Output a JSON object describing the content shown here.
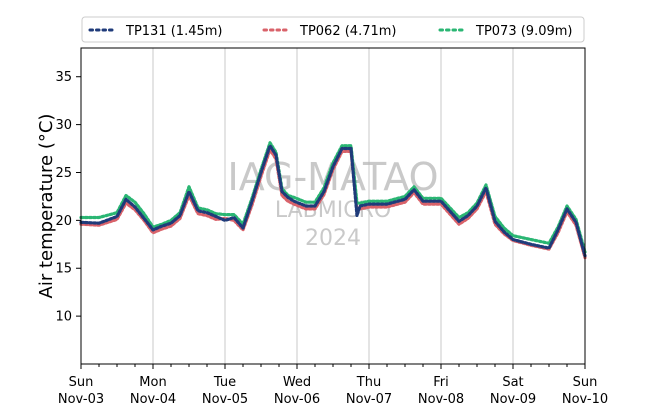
{
  "chart_data": {
    "type": "line",
    "ylabel": "Air temperature (°C)",
    "ylim": [
      5,
      38
    ],
    "yticks": [
      10,
      15,
      20,
      25,
      30,
      35
    ],
    "xlim": [
      "2024-11-03",
      "2024-11-10"
    ],
    "xticks": [
      {
        "day": "Sun",
        "date": "Nov-03"
      },
      {
        "day": "Mon",
        "date": "Nov-04"
      },
      {
        "day": "Tue",
        "date": "Nov-05"
      },
      {
        "day": "Wed",
        "date": "Nov-06"
      },
      {
        "day": "Thu",
        "date": "Nov-07"
      },
      {
        "day": "Fri",
        "date": "Nov-08"
      },
      {
        "day": "Sat",
        "date": "Nov-09"
      },
      {
        "day": "Sun",
        "date": "Nov-10"
      }
    ],
    "grid": "vertical",
    "legend_position": "top",
    "watermark": [
      "IAG-MATAO",
      "LABMICRO",
      "2024"
    ],
    "series": [
      {
        "name": "TP131 (1.45m)",
        "color": "#1f3b7a",
        "x": [
          "2024-11-03 00:00",
          "2024-11-03 06:00",
          "2024-11-03 12:00",
          "2024-11-03 15:00",
          "2024-11-03 18:00",
          "2024-11-03 21:00",
          "2024-11-04 00:00",
          "2024-11-04 03:00",
          "2024-11-04 06:00",
          "2024-11-04 09:00",
          "2024-11-04 12:00",
          "2024-11-04 15:00",
          "2024-11-04 18:00",
          "2024-11-04 21:00",
          "2024-11-05 00:00",
          "2024-11-05 03:00",
          "2024-11-05 06:00",
          "2024-11-05 09:00",
          "2024-11-05 12:00",
          "2024-11-05 15:00",
          "2024-11-05 17:00",
          "2024-11-05 19:00",
          "2024-11-05 21:00",
          "2024-11-05 23:00",
          "2024-11-06 03:00",
          "2024-11-06 06:00",
          "2024-11-06 09:00",
          "2024-11-06 12:00",
          "2024-11-06 15:00",
          "2024-11-06 18:00",
          "2024-11-06 20:00",
          "2024-11-06 21:00",
          "2024-11-07 00:00",
          "2024-11-07 06:00",
          "2024-11-07 12:00",
          "2024-11-07 15:00",
          "2024-11-07 18:00",
          "2024-11-08 00:00",
          "2024-11-08 06:00",
          "2024-11-08 09:00",
          "2024-11-08 12:00",
          "2024-11-08 15:00",
          "2024-11-08 18:00",
          "2024-11-08 21:00",
          "2024-11-09 00:00",
          "2024-11-09 06:00",
          "2024-11-09 12:00",
          "2024-11-09 15:00",
          "2024-11-09 18:00",
          "2024-11-09 21:00",
          "2024-11-10 00:00"
        ],
        "values": [
          19.8,
          19.7,
          20.4,
          22.2,
          21.4,
          20.2,
          19.0,
          19.4,
          19.7,
          20.5,
          23.0,
          21.0,
          20.8,
          20.4,
          20.0,
          20.3,
          19.2,
          22.0,
          25.0,
          27.8,
          26.8,
          23.0,
          22.4,
          22.0,
          21.5,
          21.5,
          23.0,
          25.6,
          27.5,
          27.5,
          20.5,
          21.5,
          21.7,
          21.7,
          22.2,
          23.2,
          22.0,
          22.0,
          19.9,
          20.5,
          21.5,
          23.4,
          19.9,
          18.8,
          18.0,
          17.5,
          17.1,
          19.0,
          21.2,
          19.8,
          16.3
        ]
      },
      {
        "name": "TP062 (4.71m)",
        "color": "#d9626a",
        "x": [
          "2024-11-03 00:00",
          "2024-11-03 06:00",
          "2024-11-03 12:00",
          "2024-11-03 15:00",
          "2024-11-03 18:00",
          "2024-11-03 21:00",
          "2024-11-04 00:00",
          "2024-11-04 03:00",
          "2024-11-04 06:00",
          "2024-11-04 09:00",
          "2024-11-04 12:00",
          "2024-11-04 15:00",
          "2024-11-04 18:00",
          "2024-11-04 21:00",
          "2024-11-05 00:00",
          "2024-11-05 03:00",
          "2024-11-05 06:00",
          "2024-11-05 09:00",
          "2024-11-05 12:00",
          "2024-11-05 15:00",
          "2024-11-05 17:00",
          "2024-11-05 19:00",
          "2024-11-05 21:00",
          "2024-11-05 23:00",
          "2024-11-06 03:00",
          "2024-11-06 06:00",
          "2024-11-06 09:00",
          "2024-11-06 12:00",
          "2024-11-06 15:00",
          "2024-11-06 18:00",
          "2024-11-06 20:00",
          "2024-11-06 21:00",
          "2024-11-07 00:00",
          "2024-11-07 06:00",
          "2024-11-07 12:00",
          "2024-11-07 15:00",
          "2024-11-07 18:00",
          "2024-11-08 00:00",
          "2024-11-08 06:00",
          "2024-11-08 09:00",
          "2024-11-08 12:00",
          "2024-11-08 15:00",
          "2024-11-08 18:00",
          "2024-11-08 21:00",
          "2024-11-09 00:00",
          "2024-11-09 06:00",
          "2024-11-09 12:00",
          "2024-11-09 15:00",
          "2024-11-09 18:00",
          "2024-11-09 21:00",
          "2024-11-10 00:00"
        ],
        "values": [
          19.6,
          19.5,
          20.1,
          21.8,
          21.1,
          20.0,
          18.7,
          19.1,
          19.4,
          20.2,
          22.6,
          20.7,
          20.5,
          20.1,
          20.2,
          20.0,
          19.0,
          21.6,
          24.6,
          27.4,
          26.4,
          22.6,
          22.0,
          21.7,
          21.2,
          21.2,
          22.7,
          25.3,
          27.2,
          27.2,
          21.2,
          21.2,
          21.4,
          21.4,
          21.9,
          22.9,
          21.7,
          21.7,
          19.6,
          20.2,
          21.2,
          23.0,
          19.6,
          18.6,
          17.9,
          17.4,
          17.0,
          18.7,
          20.9,
          19.5,
          16.1
        ]
      },
      {
        "name": "TP073 (9.09m)",
        "color": "#2ab673",
        "x": [
          "2024-11-03 00:00",
          "2024-11-03 06:00",
          "2024-11-03 12:00",
          "2024-11-03 15:00",
          "2024-11-03 18:00",
          "2024-11-03 21:00",
          "2024-11-04 00:00",
          "2024-11-04 03:00",
          "2024-11-04 06:00",
          "2024-11-04 09:00",
          "2024-11-04 12:00",
          "2024-11-04 15:00",
          "2024-11-04 18:00",
          "2024-11-04 21:00",
          "2024-11-05 00:00",
          "2024-11-05 03:00",
          "2024-11-05 06:00",
          "2024-11-05 09:00",
          "2024-11-05 12:00",
          "2024-11-05 15:00",
          "2024-11-05 17:00",
          "2024-11-05 19:00",
          "2024-11-05 21:00",
          "2024-11-05 23:00",
          "2024-11-06 03:00",
          "2024-11-06 06:00",
          "2024-11-06 09:00",
          "2024-11-06 12:00",
          "2024-11-06 15:00",
          "2024-11-06 18:00",
          "2024-11-06 20:00",
          "2024-11-06 21:00",
          "2024-11-07 00:00",
          "2024-11-07 06:00",
          "2024-11-07 12:00",
          "2024-11-07 15:00",
          "2024-11-07 18:00",
          "2024-11-08 00:00",
          "2024-11-08 06:00",
          "2024-11-08 09:00",
          "2024-11-08 12:00",
          "2024-11-08 15:00",
          "2024-11-08 18:00",
          "2024-11-08 21:00",
          "2024-11-09 00:00",
          "2024-11-09 06:00",
          "2024-11-09 12:00",
          "2024-11-09 15:00",
          "2024-11-09 18:00",
          "2024-11-09 21:00",
          "2024-11-10 00:00"
        ],
        "values": [
          20.3,
          20.3,
          20.8,
          22.6,
          21.9,
          20.7,
          19.3,
          19.6,
          20.0,
          20.8,
          23.5,
          21.3,
          21.1,
          20.7,
          20.6,
          20.6,
          19.6,
          22.3,
          25.3,
          28.1,
          27.1,
          23.3,
          22.6,
          22.4,
          21.9,
          21.9,
          23.4,
          26.0,
          27.8,
          27.8,
          21.8,
          21.8,
          22.0,
          22.0,
          22.5,
          23.5,
          22.3,
          22.3,
          20.3,
          20.8,
          21.8,
          23.7,
          20.4,
          19.2,
          18.4,
          18.0,
          17.6,
          19.3,
          21.5,
          20.1,
          16.7
        ]
      }
    ]
  }
}
